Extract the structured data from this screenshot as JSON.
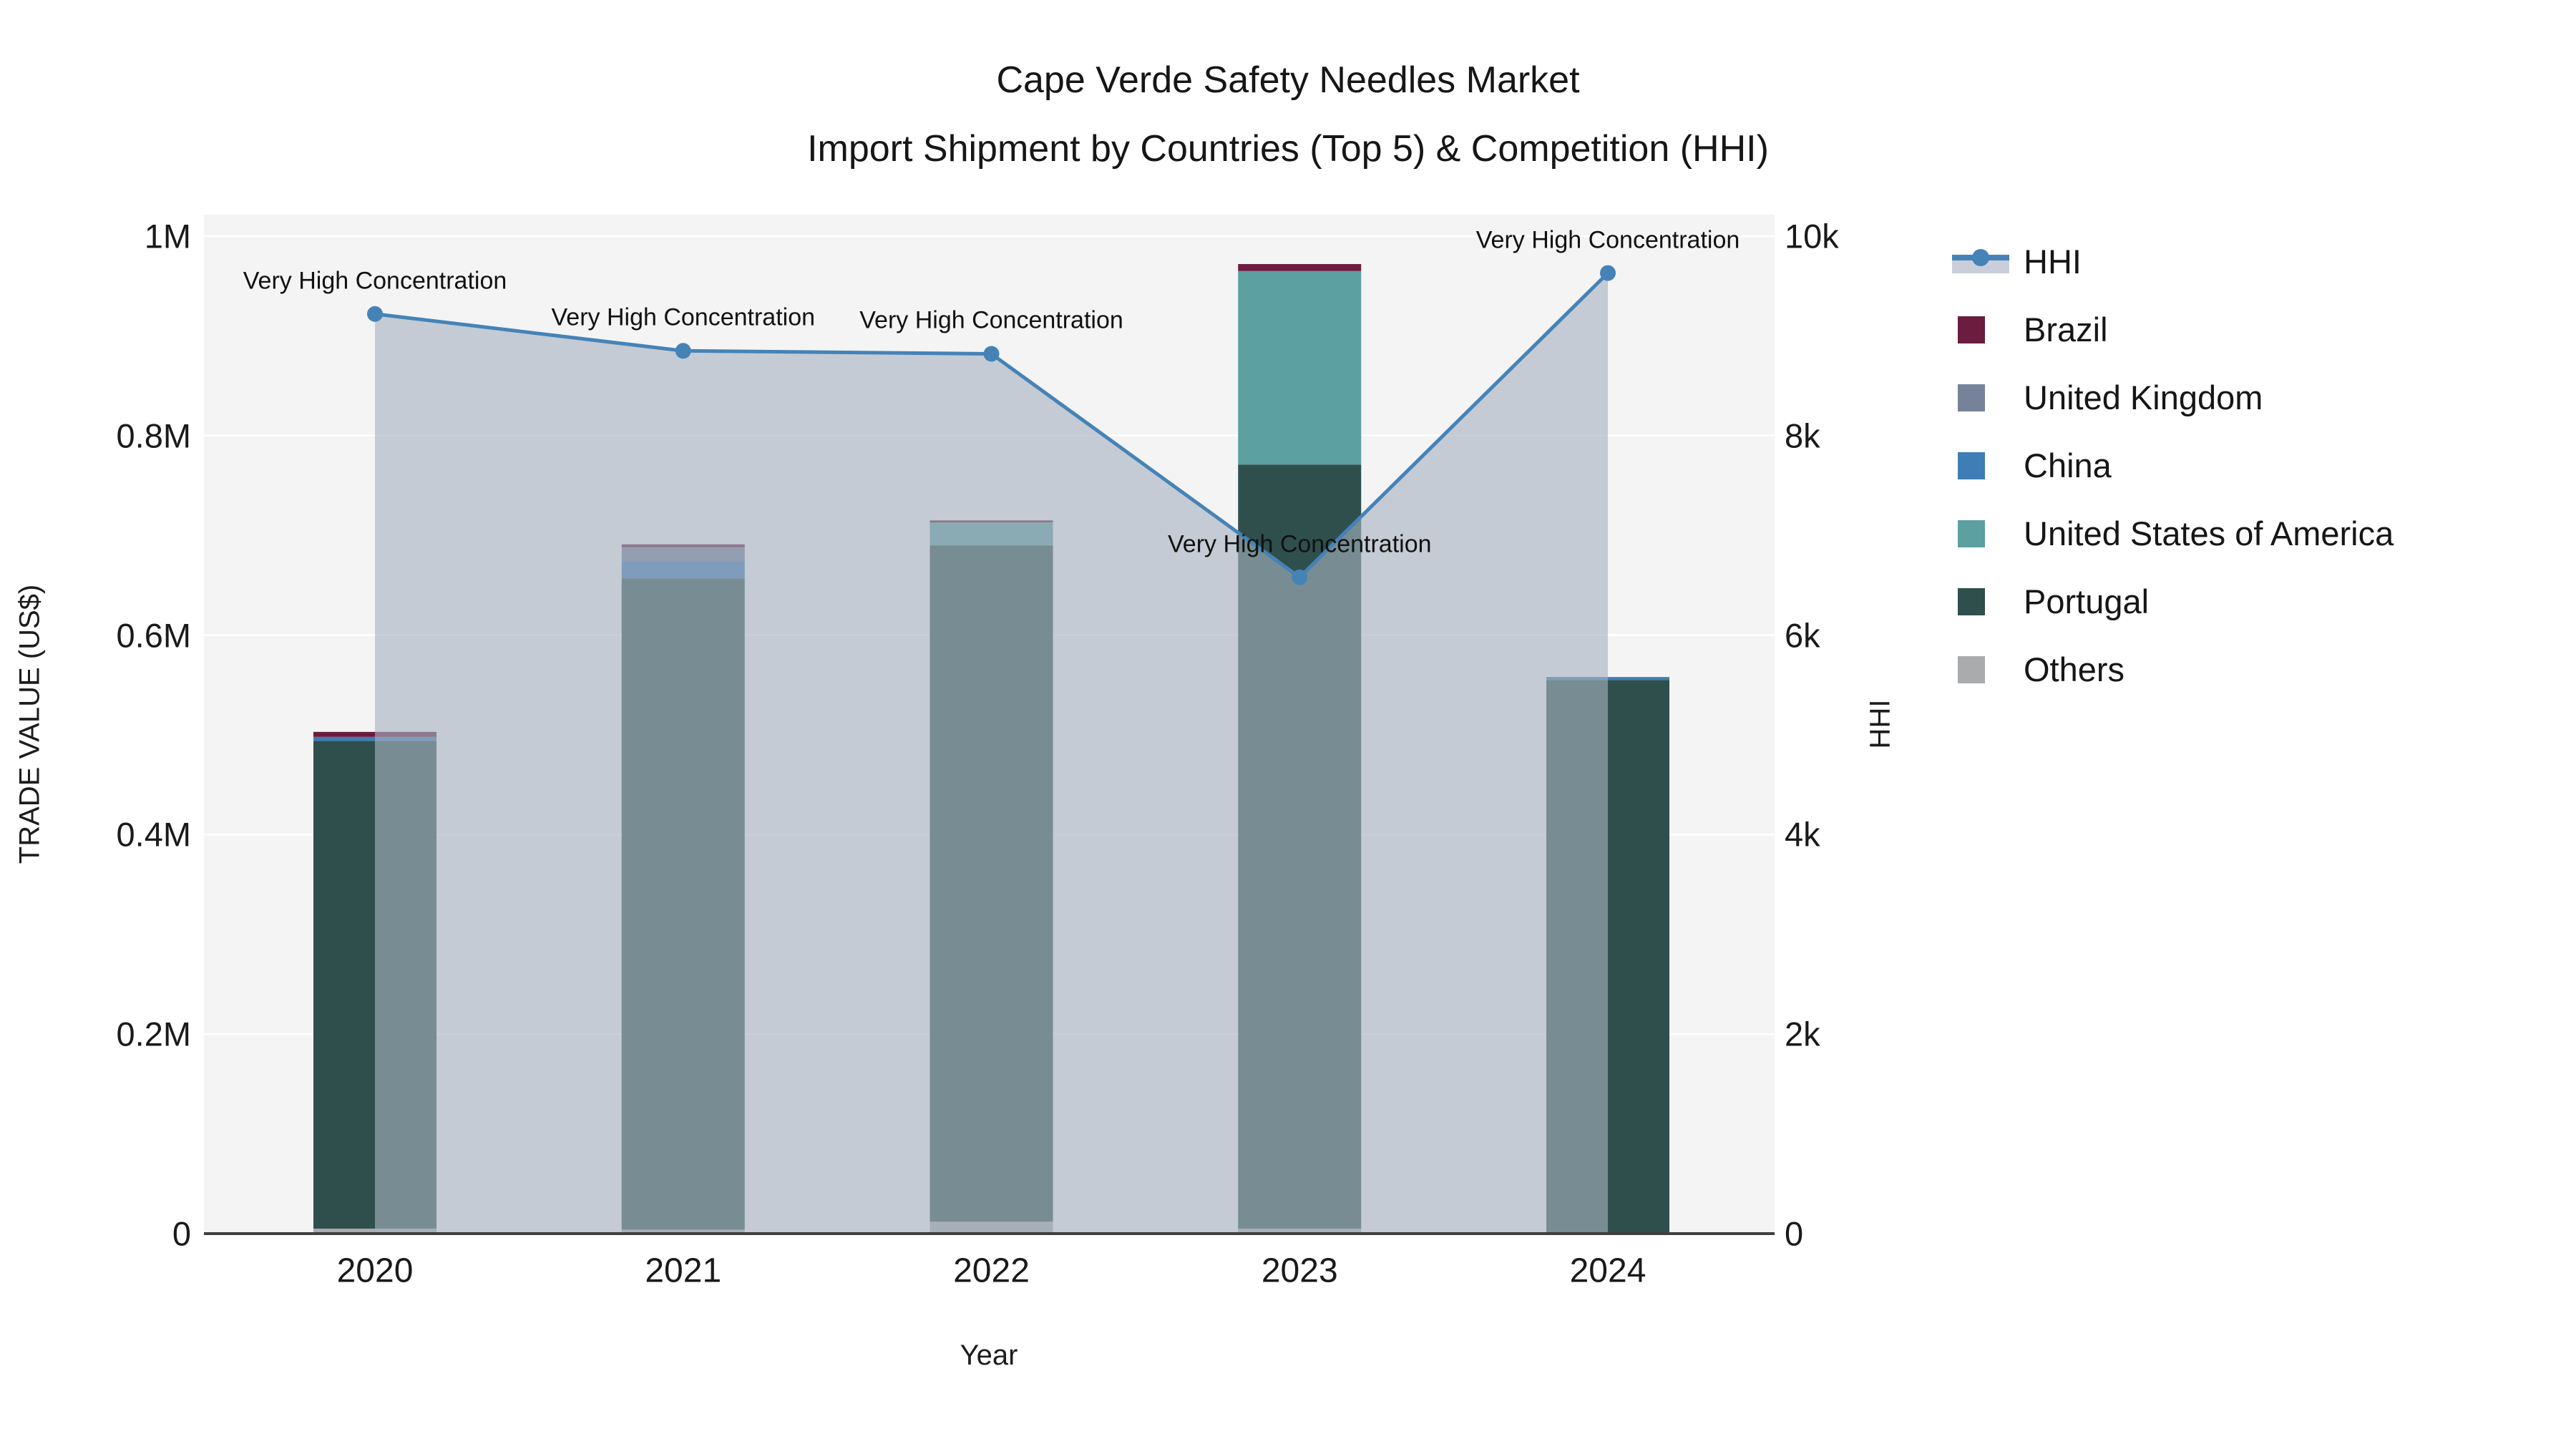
{
  "title": {
    "line1": "Cape Verde Safety Needles Market",
    "line2": "Import Shipment by Countries (Top 5) & Competition (HHI)"
  },
  "axes": {
    "x": {
      "title": "Year",
      "tick_labels": [
        "2020",
        "2021",
        "2022",
        "2023",
        "2024"
      ]
    },
    "y_left": {
      "title": "TRADE VALUE (US$)",
      "tick_values": [
        0,
        200000,
        400000,
        600000,
        800000,
        1000000
      ],
      "tick_labels": [
        "0",
        "0.2M",
        "0.4M",
        "0.6M",
        "0.8M",
        "1M"
      ],
      "max": 1000000
    },
    "y_right": {
      "title": "HHI",
      "tick_values": [
        0,
        2000,
        4000,
        6000,
        8000,
        10000
      ],
      "tick_labels": [
        "0",
        "2k",
        "4k",
        "6k",
        "8k",
        "10k"
      ],
      "max": 10000
    }
  },
  "legend": [
    {
      "id": "hhi",
      "label": "HHI",
      "type": "line",
      "color": "#4583B7",
      "band": "#C9CEDA"
    },
    {
      "id": "brazil",
      "label": "Brazil",
      "type": "square",
      "color": "#6B1C3F"
    },
    {
      "id": "united-kingdom",
      "label": "United Kingdom",
      "type": "square",
      "color": "#75829A"
    },
    {
      "id": "china",
      "label": "China",
      "type": "square",
      "color": "#3E7DB6"
    },
    {
      "id": "united-states-of-america",
      "label": "United States of America",
      "type": "square",
      "color": "#5CA0A1"
    },
    {
      "id": "portugal",
      "label": "Portugal",
      "type": "square",
      "color": "#2F4F4D"
    },
    {
      "id": "others",
      "label": "Others",
      "type": "square",
      "color": "#A9ABAD"
    }
  ],
  "colors": {
    "plot_bg": "#F4F4F5",
    "gridline": "#FFFFFF",
    "axis_line": "#3F3F3F",
    "hhi_line": "#4583B7",
    "hhi_fill": "rgba(167,177,192,0.62)"
  },
  "chart_data": {
    "type": "bar+line",
    "categories": [
      "2020",
      "2021",
      "2022",
      "2023",
      "2024"
    ],
    "bar_unit": "US$",
    "stack_order_bottom_to_top": [
      "Others",
      "Portugal",
      "United States of America",
      "China",
      "United Kingdom",
      "Brazil"
    ],
    "series": [
      {
        "name": "Others",
        "color": "#A9ABAD",
        "values": [
          5000,
          4000,
          12000,
          5000,
          0
        ]
      },
      {
        "name": "Portugal",
        "color": "#2F4F4D",
        "values": [
          489000,
          653000,
          678000,
          766000,
          555000
        ]
      },
      {
        "name": "United States of America",
        "color": "#5CA0A1",
        "values": [
          0,
          0,
          23000,
          194000,
          0
        ]
      },
      {
        "name": "China",
        "color": "#3E7DB6",
        "values": [
          4000,
          17000,
          0,
          0,
          3000
        ]
      },
      {
        "name": "United Kingdom",
        "color": "#75829A",
        "values": [
          0,
          14000,
          0,
          0,
          0
        ]
      },
      {
        "name": "Brazil",
        "color": "#6B1C3F",
        "values": [
          5000,
          3000,
          2000,
          7000,
          0
        ]
      }
    ],
    "line_series": {
      "name": "HHI",
      "values": [
        9220,
        8850,
        8820,
        6580,
        9630
      ],
      "color": "#4583B7",
      "fill": "rgba(167,177,192,0.62)",
      "annotation_text": "Very High Concentration"
    },
    "ylim_left": [
      0,
      1000000
    ],
    "ylim_right": [
      0,
      10000
    ],
    "title": "Cape Verde Safety Needles Market Import Shipment by Countries (Top 5) & Competition (HHI)",
    "xlabel": "Year",
    "ylabel_left": "TRADE VALUE (US$)",
    "ylabel_right": "HHI",
    "legend_position": "right",
    "grid": true
  }
}
